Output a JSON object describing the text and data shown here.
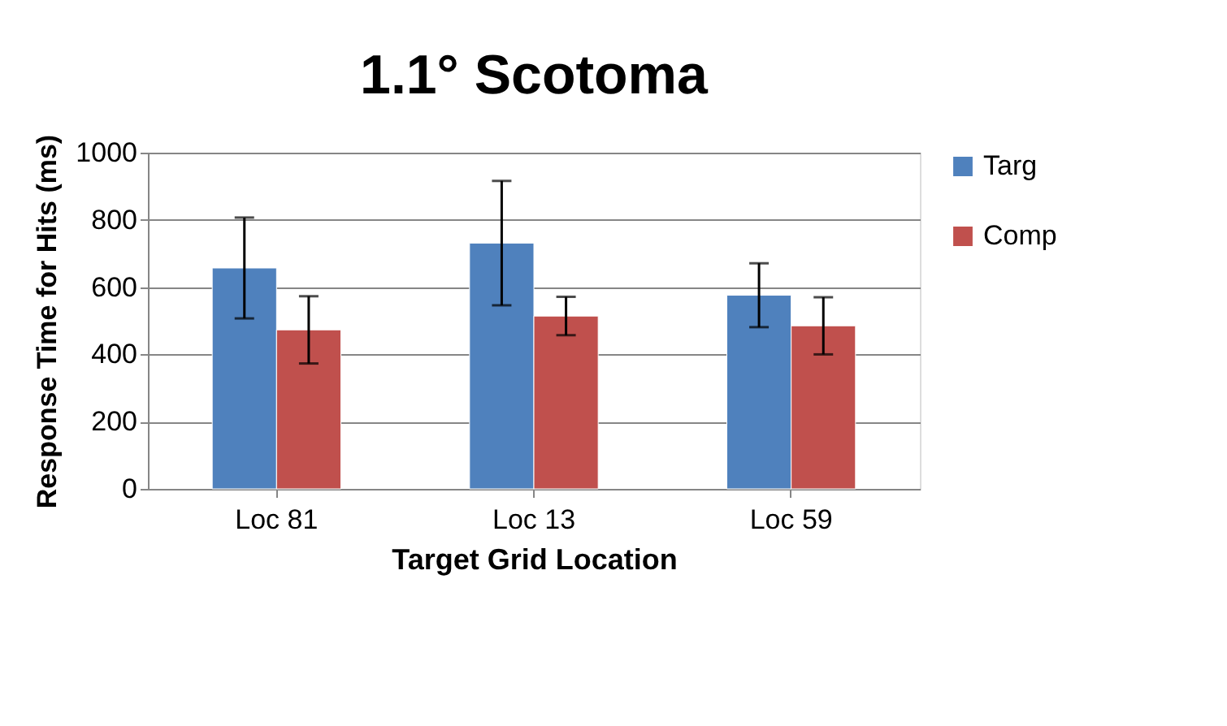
{
  "chart_data": {
    "type": "bar",
    "title": "1.1° Scotoma",
    "xlabel": "Target Grid Location",
    "ylabel": "Response Time for Hits (ms)",
    "categories": [
      "Loc 81",
      "Loc 13",
      "Loc 59"
    ],
    "series": [
      {
        "name": "Targ",
        "color": "#4f81bd",
        "values": [
          657,
          731,
          576
        ],
        "errors": [
          150,
          185,
          95
        ]
      },
      {
        "name": "Comp",
        "color": "#c0504d",
        "values": [
          473,
          514,
          485
        ],
        "errors": [
          100,
          57,
          85
        ]
      }
    ],
    "ylim": [
      0,
      1000
    ],
    "yticks": [
      0,
      200,
      400,
      600,
      800,
      1000
    ],
    "grid": "y",
    "legend": "right"
  }
}
